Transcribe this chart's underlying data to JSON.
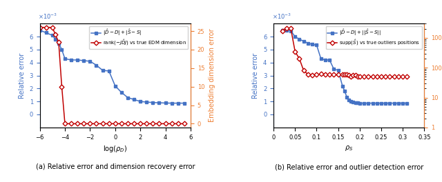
{
  "left": {
    "xlabel": "log(rho_D)",
    "ylabel_left": "Relative error",
    "ylabel_right": "Embedding dimension error",
    "xlim": [
      -6,
      6
    ],
    "ylim_left": [
      -0.001,
      0.007
    ],
    "ylim_right": [
      -1,
      27
    ],
    "legend1": "|D_hat - D| + |S_hat - S|",
    "legend2": "rank(-JDJ) vs true EDM dimension",
    "blue_x": [
      -6,
      -5.5,
      -5,
      -4.75,
      -4.5,
      -4.25,
      -4,
      -3.5,
      -3,
      -2.5,
      -2,
      -1.5,
      -1,
      -0.5,
      0,
      0.5,
      1,
      1.5,
      2,
      2.5,
      3,
      3.5,
      4,
      4.5,
      5,
      5.5
    ],
    "blue_y": [
      0.0065,
      0.0063,
      0.0061,
      0.0058,
      0.0055,
      0.005,
      0.0043,
      0.0042,
      0.0042,
      0.00415,
      0.0041,
      0.0038,
      0.0034,
      0.00335,
      0.0022,
      0.0017,
      0.0013,
      0.00115,
      0.001,
      0.00095,
      0.00092,
      0.0009,
      0.00088,
      0.00087,
      0.00087,
      0.00087
    ],
    "red_x": [
      -6,
      -5.5,
      -5,
      -4.75,
      -4.5,
      -4.25,
      -4,
      -3.5,
      -3,
      -2.5,
      -2,
      -1.5,
      -1,
      -0.5,
      0,
      0.5,
      1,
      1.5,
      2,
      2.5,
      3,
      3.5,
      4,
      4.5,
      5,
      5.5
    ],
    "red_y": [
      26,
      26,
      26,
      24,
      22,
      10,
      0,
      0,
      0,
      0,
      0,
      0,
      0,
      0,
      0,
      0,
      0,
      0,
      0,
      0,
      0,
      0,
      0,
      0,
      0,
      0
    ],
    "xticks": [
      -6,
      -4,
      -2,
      0,
      2,
      4,
      6
    ],
    "yticks_left": [
      0.0,
      0.001,
      0.002,
      0.003,
      0.004,
      0.005,
      0.006
    ],
    "yticks_right": [
      0,
      5,
      10,
      15,
      20,
      25
    ],
    "blue_color": "#4472C4",
    "red_color": "#C00000",
    "right_axis_color": "#ED7D31",
    "caption": "(a) Relative error and dimension recovery error"
  },
  "right": {
    "xlabel": "rho_S",
    "ylabel_left": "Relative error",
    "ylabel_right": "Outlier detection error",
    "xlim": [
      0,
      0.35
    ],
    "ylim_left": [
      -0.001,
      0.007
    ],
    "ylim_right": [
      1,
      3000
    ],
    "legend1": "|D_hat - D| + ||S_hat - S||",
    "legend2": "supp(S_hat) vs true outliers positions",
    "blue_x": [
      0.02,
      0.03,
      0.04,
      0.05,
      0.06,
      0.07,
      0.08,
      0.09,
      0.1,
      0.11,
      0.12,
      0.13,
      0.14,
      0.15,
      0.16,
      0.165,
      0.17,
      0.175,
      0.18,
      0.185,
      0.19,
      0.195,
      0.2,
      0.21,
      0.22,
      0.23,
      0.24,
      0.25,
      0.26,
      0.27,
      0.28,
      0.29,
      0.3,
      0.31
    ],
    "blue_y": [
      0.0065,
      0.0065,
      0.00645,
      0.006,
      0.0058,
      0.00565,
      0.0055,
      0.0054,
      0.00535,
      0.0043,
      0.0042,
      0.0042,
      0.0035,
      0.0034,
      0.0022,
      0.0018,
      0.00135,
      0.0011,
      0.001,
      0.00095,
      0.00092,
      0.0009,
      0.00087,
      0.00087,
      0.00087,
      0.00087,
      0.00087,
      0.00087,
      0.00087,
      0.00087,
      0.00087,
      0.00087,
      0.00087,
      0.00087
    ],
    "red_x": [
      0.02,
      0.03,
      0.04,
      0.05,
      0.06,
      0.07,
      0.08,
      0.09,
      0.1,
      0.11,
      0.12,
      0.13,
      0.14,
      0.15,
      0.16,
      0.165,
      0.17,
      0.175,
      0.18,
      0.185,
      0.19,
      0.195,
      0.2,
      0.21,
      0.22,
      0.23,
      0.24,
      0.25,
      0.26,
      0.27,
      0.28,
      0.29,
      0.3,
      0.31
    ],
    "red_y": [
      1700,
      2100,
      2100,
      350,
      200,
      80,
      60,
      55,
      58,
      62,
      60,
      58,
      58,
      58,
      60,
      60,
      58,
      55,
      52,
      55,
      55,
      52,
      52,
      50,
      50,
      50,
      50,
      50,
      50,
      50,
      50,
      50,
      50,
      50
    ],
    "xticks": [
      0.0,
      0.05,
      0.1,
      0.15,
      0.2,
      0.25,
      0.3,
      0.35
    ],
    "yticks_left": [
      0.0,
      0.001,
      0.002,
      0.003,
      0.004,
      0.005,
      0.006
    ],
    "blue_color": "#4472C4",
    "red_color": "#C00000",
    "right_axis_color": "#ED7D31",
    "caption": "(b) Relative error and outlier detection error"
  },
  "figsize": [
    6.4,
    2.64
  ],
  "dpi": 100
}
